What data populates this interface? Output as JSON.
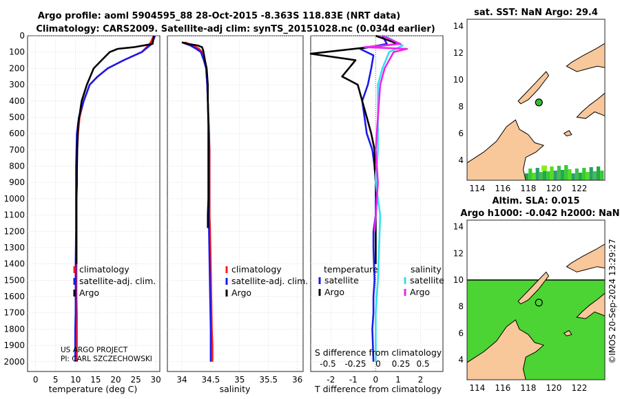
{
  "title_line1": "Argo profile: aoml 5904595_88 28-Oct-2015 -8.363S 118.83E (NRT data)",
  "title_line2": "Climatology: CARS2009. Satellite-adj clim: synTS_20151028.nc (0.034d earlier)",
  "credit": "US ARGO PROJECT",
  "pi": "PI: CARL SZCZECHOWSKI",
  "stamp": "©IMOS 20-Sep-2024 13:29:27",
  "colors": {
    "clim": "#ff1a1a",
    "sat": "#1a1aee",
    "argo": "#000000",
    "sal_sat": "#33e0ee",
    "sal_argo": "#ee22ee",
    "land": "#f8c79a",
    "sea": "#55dd22"
  },
  "chart_data": [
    {
      "type": "line",
      "name": "temperature",
      "xlabel": "temperature (deg C)",
      "ylabel": "depth",
      "xlim": [
        -2,
        31
      ],
      "ylim": [
        2060,
        0
      ],
      "xticks": [
        0,
        5,
        10,
        15,
        20,
        25,
        30
      ],
      "yticks": [
        0,
        100,
        200,
        300,
        400,
        500,
        600,
        700,
        800,
        900,
        1000,
        1100,
        1200,
        1300,
        1400,
        1500,
        1600,
        1700,
        1800,
        1900,
        2000
      ],
      "legend": [
        "climatology",
        "satellite-adj. clim.",
        "Argo"
      ],
      "series": [
        {
          "name": "climatology",
          "x": [
            29.5,
            28.5,
            26.5,
            22,
            18,
            15.5,
            13.5,
            12,
            11,
            10.6,
            10.4,
            10.3,
            10.3,
            10.2,
            10.2,
            10.2,
            10.2,
            10.2,
            10.3,
            10.3,
            10.3
          ],
          "y": [
            0,
            50,
            100,
            150,
            200,
            250,
            300,
            400,
            500,
            600,
            700,
            800,
            900,
            1000,
            1200,
            1400,
            1500,
            1600,
            1700,
            1800,
            2000
          ]
        },
        {
          "name": "satellite-adj. clim.",
          "x": [
            29.8,
            29,
            26.5,
            22,
            18,
            15.5,
            13.5,
            12,
            10.8,
            10.3,
            10.2,
            10.1,
            10.1,
            10.1,
            10.1,
            10,
            10,
            10,
            10,
            9.9,
            9.9
          ],
          "y": [
            0,
            50,
            100,
            150,
            200,
            250,
            300,
            400,
            500,
            600,
            700,
            800,
            900,
            1000,
            1200,
            1400,
            1500,
            1600,
            1700,
            1800,
            2000
          ]
        },
        {
          "name": "Argo",
          "x": [
            29.5,
            29.2,
            24.5,
            20.5,
            18.5,
            16.5,
            14.5,
            12.8,
            11.5,
            10.6,
            10.4,
            10.3,
            10.3,
            10.2,
            10.2,
            10.2,
            10.2,
            10.2
          ],
          "y": [
            0,
            50,
            70,
            80,
            100,
            150,
            200,
            300,
            400,
            550,
            700,
            850,
            900,
            1000,
            1100,
            1200,
            1300,
            1400
          ]
        }
      ]
    },
    {
      "type": "line",
      "name": "salinity",
      "xlabel": "salinity",
      "xlim": [
        33.75,
        36.1
      ],
      "ylim": [
        2060,
        0
      ],
      "xticks": [
        34,
        34.5,
        35,
        35.5,
        36
      ],
      "legend": [
        "climatology",
        "satellite-adj. clim.",
        "Argo"
      ],
      "series": [
        {
          "name": "climatology",
          "x": [
            34.05,
            34.2,
            34.3,
            34.35,
            34.4,
            34.42,
            34.44,
            34.45,
            34.46,
            34.47,
            34.48,
            34.48,
            34.48,
            34.48,
            34.48,
            34.49,
            34.5,
            34.51,
            34.52,
            34.53,
            34.53
          ],
          "y": [
            40,
            60,
            80,
            100,
            150,
            200,
            300,
            400,
            500,
            600,
            700,
            800,
            900,
            1000,
            1100,
            1200,
            1400,
            1600,
            1800,
            1900,
            2000
          ]
        },
        {
          "name": "satellite-adj. clim.",
          "x": [
            34.0,
            34.15,
            34.25,
            34.33,
            34.38,
            34.42,
            34.44,
            34.45,
            34.46,
            34.47,
            34.47,
            34.47,
            34.47,
            34.47,
            34.47,
            34.47,
            34.48,
            34.49,
            34.5,
            34.5,
            34.5
          ],
          "y": [
            40,
            60,
            80,
            100,
            150,
            200,
            300,
            400,
            500,
            600,
            700,
            800,
            900,
            1000,
            1100,
            1200,
            1400,
            1600,
            1800,
            1900,
            2000
          ]
        },
        {
          "name": "Argo",
          "x": [
            34.0,
            34.1,
            34.28,
            34.35,
            34.37,
            34.4,
            34.43,
            34.45,
            34.45,
            34.46,
            34.46,
            34.46,
            34.46,
            34.45,
            34.45
          ],
          "y": [
            40,
            50,
            60,
            70,
            90,
            150,
            200,
            300,
            400,
            550,
            700,
            850,
            1000,
            1100,
            1180
          ]
        }
      ]
    },
    {
      "type": "line",
      "name": "T difference from climatology",
      "xlabel": "T difference from climatology",
      "secondary_xlabel": "S difference from climatology",
      "xlim": [
        -2.9,
        3.0
      ],
      "ylim": [
        2060,
        0
      ],
      "xticks": [
        -2,
        -1,
        0,
        1,
        2
      ],
      "secondary_xticks": [
        "-0.5",
        "-0.25",
        "0",
        "0.25",
        "0.5"
      ],
      "legend_temperature": {
        "heading": "temperature",
        "items": [
          "satellite",
          "Argo"
        ]
      },
      "legend_salinity": {
        "heading": "salinity",
        "items": [
          "satellite",
          "Argo"
        ]
      },
      "series": [
        {
          "name": "temperature satellite",
          "x": [
            0.3,
            0.5,
            -0.7,
            -0.1,
            -0.2,
            -0.35,
            -0.6,
            -0.5,
            -0.4,
            -0.15,
            -0.05,
            0,
            0,
            0,
            -0.1,
            -0.1,
            -0.05,
            -0.1,
            -0.1,
            -0.15,
            -0.1
          ],
          "y": [
            0,
            50,
            80,
            120,
            200,
            300,
            400,
            500,
            600,
            700,
            800,
            900,
            1000,
            1100,
            1200,
            1300,
            1500,
            1600,
            1700,
            1800,
            2000
          ]
        },
        {
          "name": "temperature Argo",
          "x": [
            0,
            1.0,
            -2.9,
            -0.9,
            -1.5,
            -0.8,
            -0.6,
            -0.4,
            -0.2,
            -0.05,
            -0.05,
            0,
            0.05,
            0,
            0,
            0
          ],
          "y": [
            0,
            50,
            110,
            150,
            250,
            300,
            400,
            500,
            600,
            700,
            800,
            900,
            1000,
            1100,
            1200,
            1400
          ]
        },
        {
          "name": "salinity satellite",
          "x": [
            0.4,
            1.2,
            0.6,
            0.3,
            0.1,
            0.1,
            0.1,
            0.05,
            0,
            0,
            0.1,
            0.2,
            0.15,
            0.1,
            0.05,
            0.0,
            0.0,
            0.0
          ],
          "y": [
            0,
            60,
            100,
            200,
            300,
            500,
            700,
            800,
            850,
            900,
            1000,
            1100,
            1300,
            1500,
            1600,
            1700,
            1800,
            2000
          ]
        },
        {
          "name": "salinity Argo",
          "x": [
            0.3,
            1.1,
            -0.5,
            1.4,
            0.8,
            0.4,
            0.2,
            0.1,
            0.0,
            0.05,
            0.1,
            0.05,
            0.0,
            -0.05
          ],
          "y": [
            0,
            50,
            70,
            80,
            100,
            200,
            300,
            500,
            700,
            800,
            900,
            1000,
            1100,
            1200
          ]
        }
      ]
    },
    {
      "type": "heatmap",
      "name": "sat. SST map",
      "title": "sat. SST: NaN Argo: 29.4",
      "xticks": [
        114,
        116,
        118,
        120,
        122
      ],
      "yticks": [
        4,
        6,
        8,
        10,
        12,
        14
      ],
      "xlim": [
        113.2,
        124.0
      ],
      "ylim": [
        2.5,
        14.5
      ],
      "argo_position": {
        "lon": 118.83,
        "lat": 8.3
      }
    },
    {
      "type": "heatmap",
      "name": "altimetry SLA map",
      "title_line1": "Altim. SLA: 0.015",
      "title_line2": "Argo h1000: -0.042 h2000: NaN",
      "xticks": [
        114,
        116,
        118,
        120,
        122
      ],
      "yticks": [
        4,
        6,
        8,
        10,
        12,
        14
      ],
      "xlim": [
        113.2,
        124.0
      ],
      "ylim": [
        2.5,
        14.5
      ],
      "argo_position": {
        "lon": 118.83,
        "lat": 8.3
      }
    }
  ]
}
